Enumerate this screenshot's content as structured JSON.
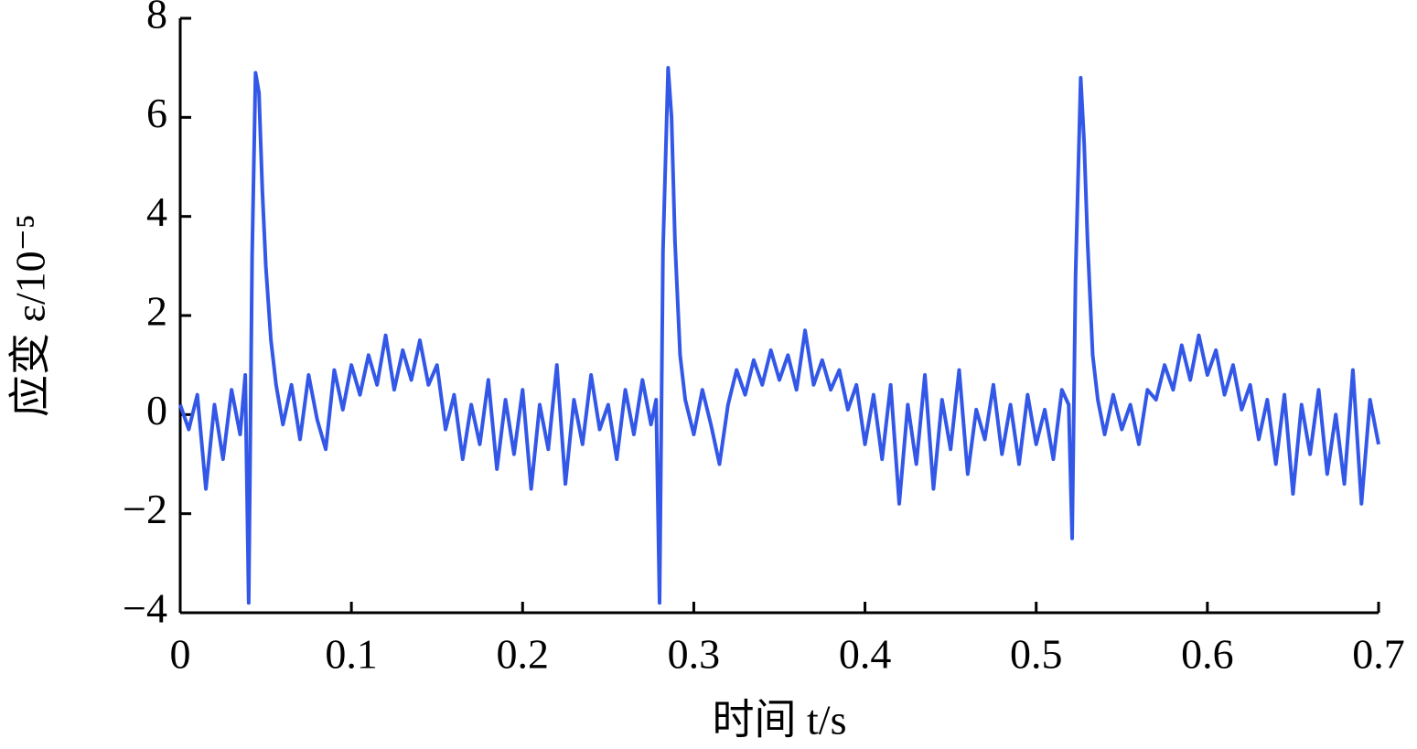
{
  "chart_data": {
    "type": "line",
    "xlabel": "时间 t/s",
    "ylabel": "应变 ε/10⁻⁵",
    "color": "#3358e8",
    "xlim": [
      0,
      0.7
    ],
    "ylim": [
      -4,
      8
    ],
    "xticks": [
      0,
      0.1,
      0.2,
      0.3,
      0.4,
      0.5,
      0.6,
      0.7
    ],
    "yticks": [
      {
        "value": -4,
        "label": "−4"
      },
      {
        "value": -2,
        "label": "−2"
      },
      0,
      2,
      4,
      6,
      8
    ],
    "x": [
      0,
      0.005,
      0.01,
      0.015,
      0.02,
      0.025,
      0.03,
      0.035,
      0.038,
      0.04,
      0.042,
      0.044,
      0.046,
      0.048,
      0.05,
      0.053,
      0.056,
      0.06,
      0.065,
      0.07,
      0.075,
      0.08,
      0.085,
      0.09,
      0.095,
      0.1,
      0.105,
      0.11,
      0.115,
      0.12,
      0.125,
      0.13,
      0.135,
      0.14,
      0.145,
      0.15,
      0.155,
      0.16,
      0.165,
      0.17,
      0.175,
      0.18,
      0.185,
      0.19,
      0.195,
      0.2,
      0.205,
      0.21,
      0.215,
      0.22,
      0.225,
      0.23,
      0.235,
      0.24,
      0.245,
      0.25,
      0.255,
      0.26,
      0.265,
      0.27,
      0.275,
      0.278,
      0.28,
      0.282,
      0.285,
      0.287,
      0.289,
      0.292,
      0.295,
      0.3,
      0.305,
      0.31,
      0.315,
      0.32,
      0.325,
      0.33,
      0.335,
      0.34,
      0.345,
      0.35,
      0.355,
      0.36,
      0.365,
      0.37,
      0.375,
      0.38,
      0.385,
      0.39,
      0.395,
      0.4,
      0.405,
      0.41,
      0.415,
      0.42,
      0.425,
      0.43,
      0.435,
      0.44,
      0.445,
      0.45,
      0.455,
      0.46,
      0.465,
      0.47,
      0.475,
      0.48,
      0.485,
      0.49,
      0.495,
      0.5,
      0.505,
      0.51,
      0.515,
      0.519,
      0.521,
      0.523,
      0.526,
      0.528,
      0.53,
      0.533,
      0.536,
      0.54,
      0.545,
      0.55,
      0.555,
      0.56,
      0.565,
      0.57,
      0.575,
      0.58,
      0.585,
      0.59,
      0.595,
      0.6,
      0.605,
      0.61,
      0.615,
      0.62,
      0.625,
      0.63,
      0.635,
      0.64,
      0.645,
      0.65,
      0.655,
      0.66,
      0.665,
      0.67,
      0.675,
      0.68,
      0.685,
      0.69,
      0.695,
      0.7
    ],
    "values": [
      0.2,
      -0.3,
      0.4,
      -1.5,
      0.2,
      -0.9,
      0.5,
      -0.4,
      0.8,
      -3.8,
      3.2,
      6.9,
      6.5,
      4.5,
      3.0,
      1.5,
      0.6,
      -0.2,
      0.6,
      -0.5,
      0.8,
      -0.1,
      -0.7,
      0.9,
      0.1,
      1.0,
      0.4,
      1.2,
      0.6,
      1.6,
      0.5,
      1.3,
      0.7,
      1.5,
      0.6,
      1.0,
      -0.3,
      0.4,
      -0.9,
      0.2,
      -0.6,
      0.7,
      -1.1,
      0.3,
      -0.8,
      0.5,
      -1.5,
      0.2,
      -0.7,
      1.0,
      -1.4,
      0.3,
      -0.6,
      0.8,
      -0.3,
      0.2,
      -0.9,
      0.5,
      -0.4,
      0.7,
      -0.2,
      0.3,
      -3.8,
      3.3,
      7.0,
      6.0,
      3.5,
      1.2,
      0.3,
      -0.4,
      0.5,
      -0.2,
      -1.0,
      0.2,
      0.9,
      0.4,
      1.1,
      0.6,
      1.3,
      0.7,
      1.2,
      0.5,
      1.7,
      0.6,
      1.1,
      0.5,
      0.9,
      0.1,
      0.6,
      -0.6,
      0.4,
      -0.9,
      0.6,
      -1.8,
      0.2,
      -1.0,
      0.8,
      -1.5,
      0.3,
      -0.7,
      0.9,
      -1.2,
      0.1,
      -0.5,
      0.6,
      -0.8,
      0.2,
      -1.0,
      0.4,
      -0.6,
      0.1,
      -0.9,
      0.5,
      0.2,
      -2.5,
      2.8,
      6.8,
      5.5,
      3.5,
      1.2,
      0.3,
      -0.4,
      0.4,
      -0.3,
      0.2,
      -0.6,
      0.5,
      0.3,
      1.0,
      0.5,
      1.4,
      0.7,
      1.6,
      0.8,
      1.3,
      0.4,
      1.0,
      0.1,
      0.6,
      -0.5,
      0.3,
      -1.0,
      0.4,
      -1.6,
      0.2,
      -0.8,
      0.5,
      -1.2,
      0.0,
      -1.4,
      0.9,
      -1.8,
      0.3,
      -0.6
    ]
  }
}
